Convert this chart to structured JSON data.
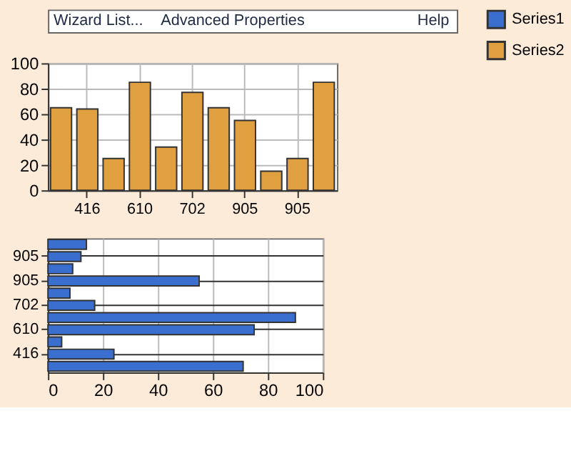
{
  "chart_data": [
    {
      "type": "other",
      "annotations": [
        "Wizard List...",
        "Advanced Properties",
        "Help"
      ]
    },
    {
      "type": "bar",
      "categories": [
        null,
        "416",
        null,
        "610",
        null,
        "702",
        null,
        "905",
        null,
        "905",
        null
      ],
      "ylim": [
        0,
        100
      ],
      "yticks": [
        0,
        20,
        40,
        60,
        80,
        100
      ],
      "grid": true,
      "legend": "top right",
      "series": [
        {
          "name": "Series2",
          "color": "#e0a040",
          "values": [
            65,
            64,
            25,
            85,
            34,
            77,
            65,
            55,
            15,
            25,
            85
          ]
        }
      ]
    },
    {
      "type": "bar",
      "orientation": "horizontal",
      "categories": [
        null,
        "905",
        null,
        "905",
        null,
        "702",
        null,
        "610",
        null,
        "416",
        null
      ],
      "xlim": [
        0,
        100
      ],
      "xticks": [
        0,
        20,
        40,
        60,
        80,
        100
      ],
      "grid": true,
      "series": [
        {
          "name": "Series1",
          "color": "#3a6fd0",
          "values": [
            14,
            12,
            9,
            55,
            8,
            17,
            90,
            75,
            5,
            24,
            71
          ]
        }
      ]
    }
  ]
}
